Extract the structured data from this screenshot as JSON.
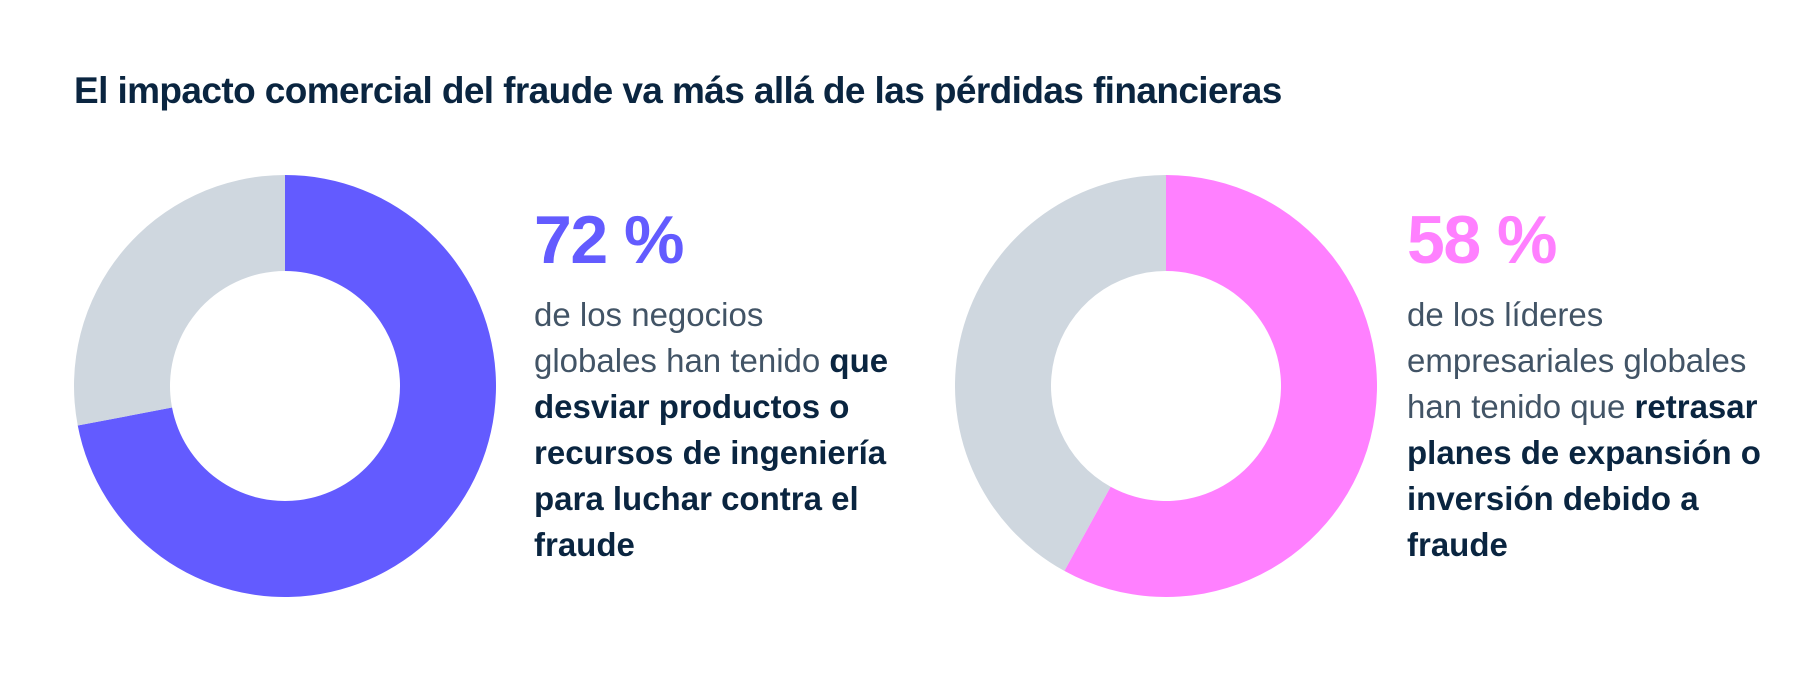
{
  "title": "El impacto comercial del fraude va más allá de las pérdidas financieras",
  "chart_data": [
    {
      "type": "pie",
      "labels": [
        "",
        ""
      ],
      "values": [
        72,
        28
      ],
      "colors": [
        "#635bff",
        "#cfd7df"
      ],
      "stat": {
        "percent": "72 %",
        "text_before": "de los negocios globales han tenido ",
        "text_bold": "que desviar productos o recursos de ingeniería para luchar contra el fraude"
      }
    },
    {
      "type": "pie",
      "labels": [
        "",
        ""
      ],
      "values": [
        58,
        42
      ],
      "colors": [
        "#ff80ff",
        "#cfd7df"
      ],
      "stat": {
        "percent": "58 %",
        "text_before": "de los líderes empresariales globales han tenido que ",
        "text_bold": "retrasar planes de expansión o inversión debido a fraude"
      }
    }
  ]
}
